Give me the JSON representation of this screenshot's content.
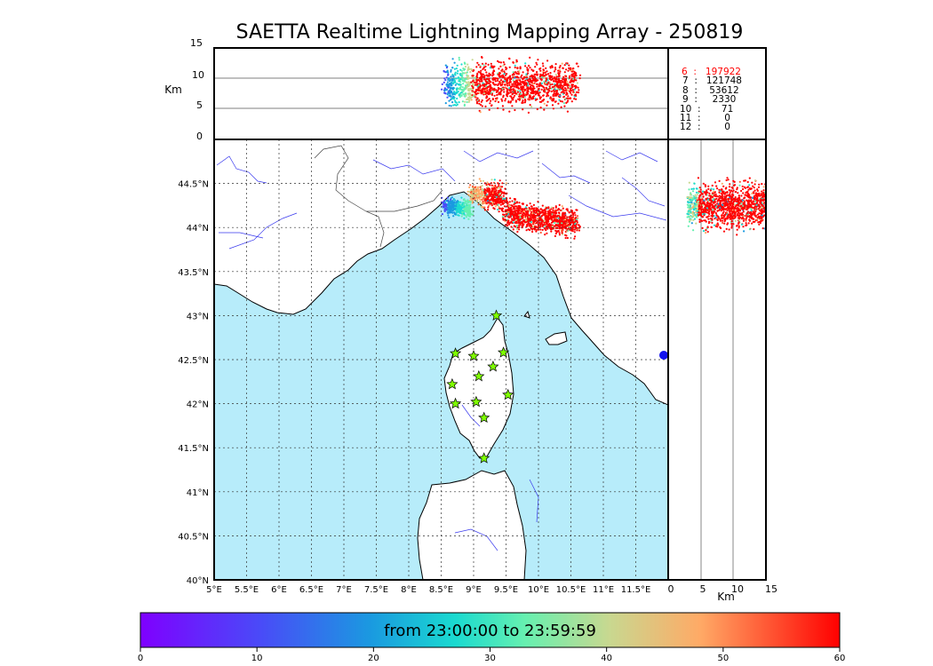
{
  "title": "SAETTA Realtime Lightning Mapping Array - 250819",
  "altitude_panel": {
    "ylabel": "Km",
    "yticks": [
      "0",
      "5",
      "10",
      "15"
    ]
  },
  "side_panel": {
    "xlabel": "Km",
    "xticks": [
      "0",
      "5",
      "10",
      "15"
    ]
  },
  "map": {
    "lon_ticks": [
      "5°E",
      "5.5°E",
      "6°E",
      "6.5°E",
      "7°E",
      "7.5°E",
      "8°E",
      "8.5°E",
      "9°E",
      "9.5°E",
      "10°E",
      "10.5°E",
      "11°E",
      "11.5°E"
    ],
    "lat_ticks": [
      "40°N",
      "40.5°N",
      "41°N",
      "41.5°N",
      "42°N",
      "42.5°N",
      "43°N",
      "43.5°N",
      "44°N",
      "44.5°N"
    ],
    "stations": [
      {
        "lon": 9.35,
        "lat": 43.0
      },
      {
        "lon": 8.72,
        "lat": 42.57
      },
      {
        "lon": 9.0,
        "lat": 42.54
      },
      {
        "lon": 9.46,
        "lat": 42.58
      },
      {
        "lon": 9.3,
        "lat": 42.42
      },
      {
        "lon": 9.08,
        "lat": 42.31
      },
      {
        "lon": 8.67,
        "lat": 42.22
      },
      {
        "lon": 9.53,
        "lat": 42.1
      },
      {
        "lon": 8.72,
        "lat": 42.0
      },
      {
        "lon": 9.04,
        "lat": 42.02
      },
      {
        "lon": 9.16,
        "lat": 41.84
      },
      {
        "lon": 9.16,
        "lat": 41.38
      }
    ],
    "colors": {
      "sea": "#b7ecfa",
      "land": "#ffffff",
      "rivers": "#3a3aee",
      "station": "#7fff00"
    }
  },
  "counts": [
    {
      "label": "6  :   197922",
      "color": "#ff0000"
    },
    {
      "label": "7  :   121748",
      "color": "#000000"
    },
    {
      "label": "8  :    53612",
      "color": "#000000"
    },
    {
      "label": "9  :     2330",
      "color": "#000000"
    },
    {
      "label": "10  :       71",
      "color": "#000000"
    },
    {
      "label": "11  :        0",
      "color": "#000000"
    },
    {
      "label": "12  :        0",
      "color": "#000000"
    }
  ],
  "colorbar": {
    "label": "from 23:00:00 to 23:59:59",
    "ticks": [
      "0",
      "10",
      "20",
      "30",
      "40",
      "50",
      "60"
    ]
  }
}
